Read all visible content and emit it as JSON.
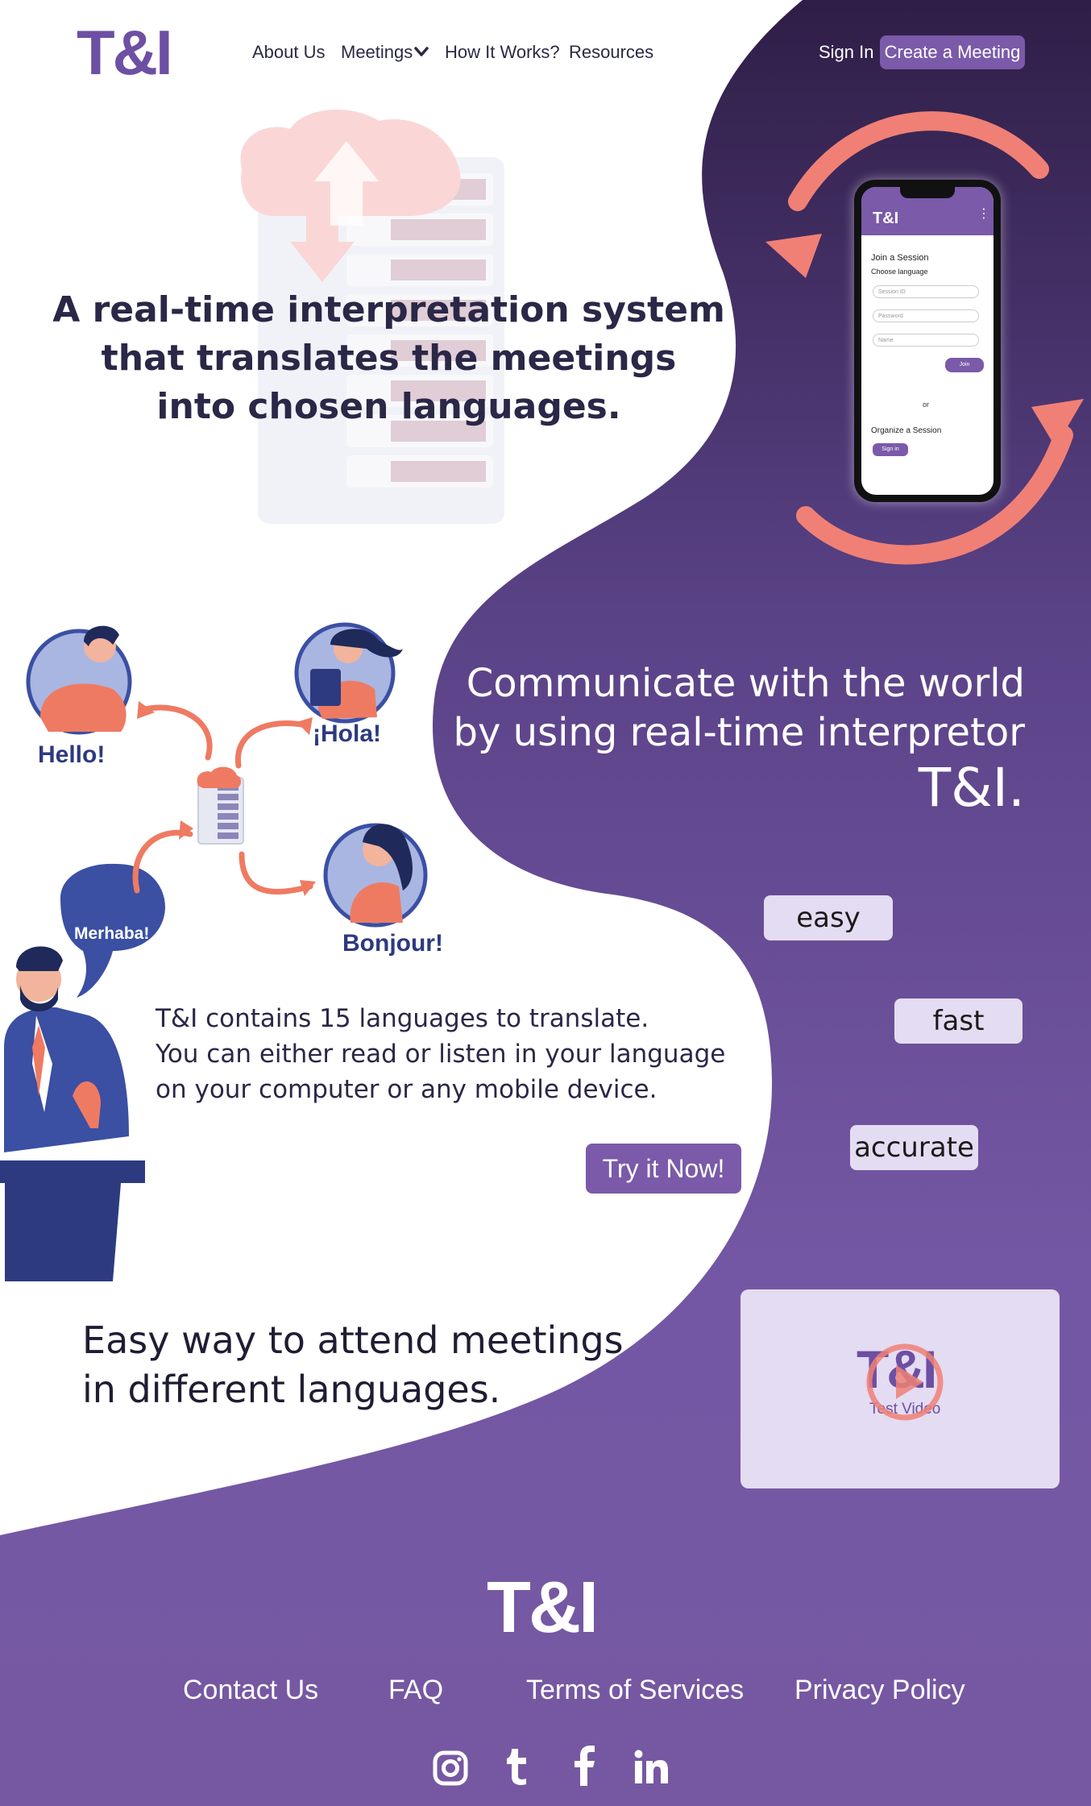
{
  "header": {
    "logo": "T&I",
    "nav": [
      {
        "label": "About Us"
      },
      {
        "label": "Meetings"
      },
      {
        "label": "How It Works?"
      },
      {
        "label": "Resources"
      }
    ],
    "sign_in": "Sign In",
    "create_meeting": "Create a Meeting"
  },
  "hero": {
    "title_lines": [
      "A real-time interpretation system",
      "that translates the meetings",
      "into chosen languages."
    ]
  },
  "phone": {
    "app_logo": "T&I",
    "join_heading": "Join a Session",
    "choose_language": "Choose language",
    "fields": [
      "Session ID",
      "Password",
      "Name"
    ],
    "join_button": "Join",
    "or": "or",
    "organize_heading": "Organize a Session",
    "sign_in_button": "Sign in"
  },
  "illustration": {
    "greetings": [
      "Hello!",
      "¡Hola!",
      "Merhaba!",
      "Bonjour!"
    ]
  },
  "communicate": {
    "line1": "Communicate with the world",
    "line2": "by using real-time interpretor",
    "brand": "T&I."
  },
  "chips": [
    "easy",
    "fast",
    "accurate"
  ],
  "info": {
    "lines": [
      "T&I contains 15 languages to translate.",
      "You can either read or listen in your language",
      "on your computer or any mobile device."
    ],
    "try_button": "Try it Now!"
  },
  "easy_way": {
    "lines": [
      "Easy way to attend meetings",
      "in different languages."
    ]
  },
  "video": {
    "logo": "T&I",
    "caption": "Test Video"
  },
  "footer": {
    "logo": "T&I",
    "links": [
      "Contact Us",
      "FAQ",
      "Terms of Services",
      "Privacy Policy"
    ],
    "social_icons": [
      "instagram-icon",
      "tumblr-icon",
      "facebook-icon",
      "linkedin-icon"
    ]
  },
  "colors": {
    "purple_dark": "#2f1f48",
    "purple": "#7a5aa9",
    "lavender": "#e4dcf2",
    "coral": "#f08075",
    "navy_text": "#2a2747"
  }
}
